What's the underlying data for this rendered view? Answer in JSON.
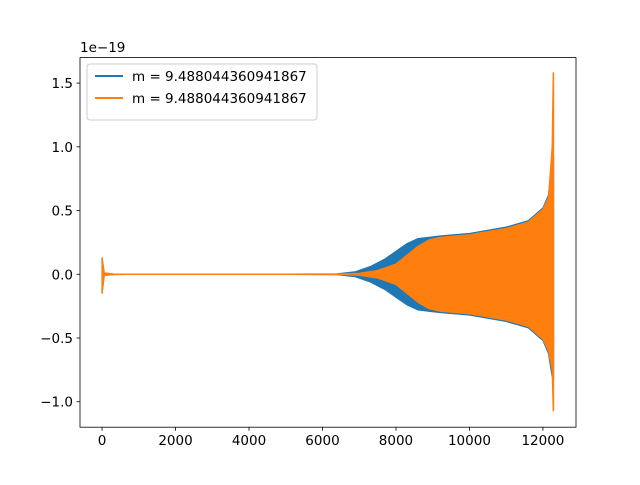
{
  "chart_data": {
    "type": "line",
    "title": "",
    "xlabel": "",
    "ylabel": "",
    "offset_text": "1e−19",
    "xlim": [
      -600,
      12900
    ],
    "ylim": [
      -1.2,
      1.7
    ],
    "x_ticks": [
      0,
      2000,
      4000,
      6000,
      8000,
      10000,
      12000
    ],
    "x_tick_labels": [
      "0",
      "2000",
      "4000",
      "6000",
      "8000",
      "10000",
      "12000"
    ],
    "y_ticks": [
      -1.0,
      -0.5,
      0.0,
      0.5,
      1.0,
      1.5
    ],
    "y_tick_labels": [
      "−1.0",
      "−0.5",
      "0.0",
      "0.5",
      "1.0",
      "1.5"
    ],
    "grid": false,
    "legend": {
      "placement": "upper left"
    },
    "series": [
      {
        "name": "m = 9.488044360941867",
        "color": "#1f77b4",
        "envelope_x": [
          0,
          60,
          300,
          1000,
          3000,
          5000,
          6400,
          6900,
          7300,
          7700,
          8000,
          8300,
          8600,
          8900,
          9200,
          10000,
          11000,
          11600,
          12000,
          12150,
          12250,
          12290
        ],
        "envelope_upper": [
          0.13,
          0.01,
          0.002,
          0.001,
          0.001,
          0.001,
          0.003,
          0.02,
          0.06,
          0.12,
          0.18,
          0.24,
          0.28,
          0.29,
          0.3,
          0.32,
          0.37,
          0.42,
          0.52,
          0.62,
          0.9,
          0.92
        ],
        "envelope_lower": [
          -0.15,
          -0.01,
          -0.002,
          -0.001,
          -0.001,
          -0.001,
          -0.003,
          -0.02,
          -0.06,
          -0.12,
          -0.18,
          -0.24,
          -0.28,
          -0.29,
          -0.3,
          -0.32,
          -0.37,
          -0.42,
          -0.52,
          -0.62,
          -0.8,
          -0.82
        ]
      },
      {
        "name": "m = 9.488044360941867",
        "color": "#ff7f0e",
        "envelope_x": [
          0,
          60,
          300,
          1000,
          3000,
          5000,
          6400,
          7000,
          7500,
          8000,
          8300,
          8600,
          8900,
          9200,
          10000,
          11000,
          11600,
          12000,
          12150,
          12250,
          12280,
          12290
        ],
        "envelope_upper": [
          0.13,
          0.01,
          0.002,
          0.001,
          0.001,
          0.001,
          0.002,
          0.008,
          0.03,
          0.08,
          0.15,
          0.22,
          0.27,
          0.29,
          0.31,
          0.36,
          0.41,
          0.51,
          0.6,
          1.0,
          1.58,
          1.58
        ],
        "envelope_lower": [
          -0.15,
          -0.01,
          -0.002,
          -0.001,
          -0.001,
          -0.001,
          -0.002,
          -0.008,
          -0.03,
          -0.08,
          -0.15,
          -0.22,
          -0.27,
          -0.29,
          -0.31,
          -0.36,
          -0.41,
          -0.51,
          -0.6,
          -0.75,
          -1.07,
          -1.07
        ]
      }
    ]
  }
}
